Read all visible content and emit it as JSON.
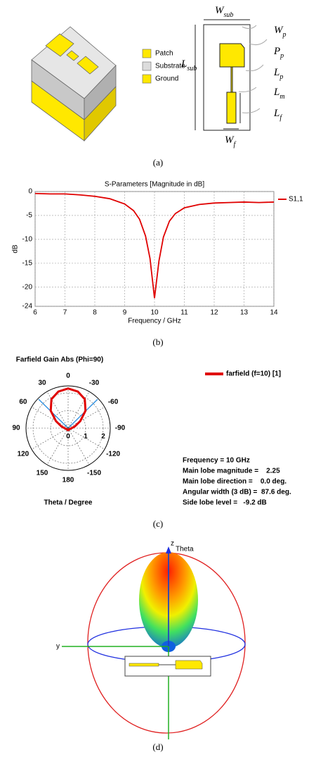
{
  "panel_a": {
    "legend": [
      "Patch",
      "Substrate",
      "Ground"
    ],
    "dimensions": [
      {
        "symbol": "W",
        "subscript": "sub"
      },
      {
        "symbol": "W",
        "subscript": "p"
      },
      {
        "symbol": "P",
        "subscript": "p"
      },
      {
        "symbol": "L",
        "subscript": "p"
      },
      {
        "symbol": "L",
        "subscript": "m"
      },
      {
        "symbol": "L",
        "subscript": "f"
      },
      {
        "symbol": "L",
        "subscript": "sub"
      },
      {
        "symbol": "W",
        "subscript": "f"
      }
    ],
    "caption": "(a)"
  },
  "chart_data": [
    {
      "type": "line",
      "title": "S-Parameters [Magnitude in dB]",
      "x_label": "Frequency / GHz",
      "y_label": "dB",
      "x": [
        6,
        6.5,
        7,
        7.5,
        8,
        8.5,
        9,
        9.3,
        9.5,
        9.7,
        9.85,
        10,
        10.15,
        10.3,
        10.5,
        10.7,
        11,
        11.5,
        12,
        12.5,
        13,
        13.5,
        14
      ],
      "series": [
        {
          "name": "S1,1",
          "color": "#e00000",
          "values": [
            -0.4,
            -0.5,
            -0.5,
            -0.7,
            -1.0,
            -1.5,
            -2.6,
            -4.0,
            -5.8,
            -9.3,
            -14,
            -22.3,
            -14.5,
            -9.5,
            -6.2,
            -4.6,
            -3.4,
            -2.7,
            -2.4,
            -2.3,
            -2.2,
            -2.3,
            -2.2
          ]
        }
      ],
      "xlim": [
        6,
        14
      ],
      "xticks": [
        6,
        7,
        8,
        9,
        10,
        11,
        12,
        13,
        14
      ],
      "ylim": [
        -24,
        0
      ],
      "yticks": [
        0,
        -5,
        -10,
        -15,
        -20,
        -24
      ],
      "grid": true,
      "legend": "right",
      "caption": "(b)"
    },
    {
      "type": "polar",
      "title": "Farfield Gain Abs (Phi=90)",
      "theta_label": "Theta / Degree",
      "theta": [
        -180,
        -150,
        -120,
        -90,
        -75,
        -60,
        -45,
        -30,
        -15,
        0,
        15,
        30,
        45,
        60,
        75,
        90,
        120,
        150,
        180
      ],
      "series": [
        {
          "name": "farfield (f=10) [1]",
          "color": "#e00000",
          "values": [
            0.15,
            0.1,
            0.1,
            0.2,
            0.4,
            0.8,
            1.4,
            1.9,
            2.15,
            2.25,
            2.15,
            1.9,
            1.4,
            0.8,
            0.4,
            0.2,
            0.1,
            0.1,
            0.15
          ]
        }
      ],
      "rlim": [
        0,
        2.4
      ],
      "rticks": [
        0,
        1,
        2
      ],
      "angle_ticks": [
        0,
        30,
        60,
        90,
        120,
        150,
        180,
        -150,
        -120,
        -90,
        -60,
        -30
      ],
      "annotations": [
        "Frequency = 10 GHz",
        "Main lobe magnitude =    2.25",
        "Main lobe direction =    0.0 deg.",
        "Angular width (3 dB) =  87.6 deg.",
        "Side lobe level =   -9.2 dB"
      ],
      "caption": "(c)"
    }
  ],
  "panel_d": {
    "axis_labels": [
      "z",
      "Theta",
      "y"
    ],
    "caption": "(d)"
  }
}
